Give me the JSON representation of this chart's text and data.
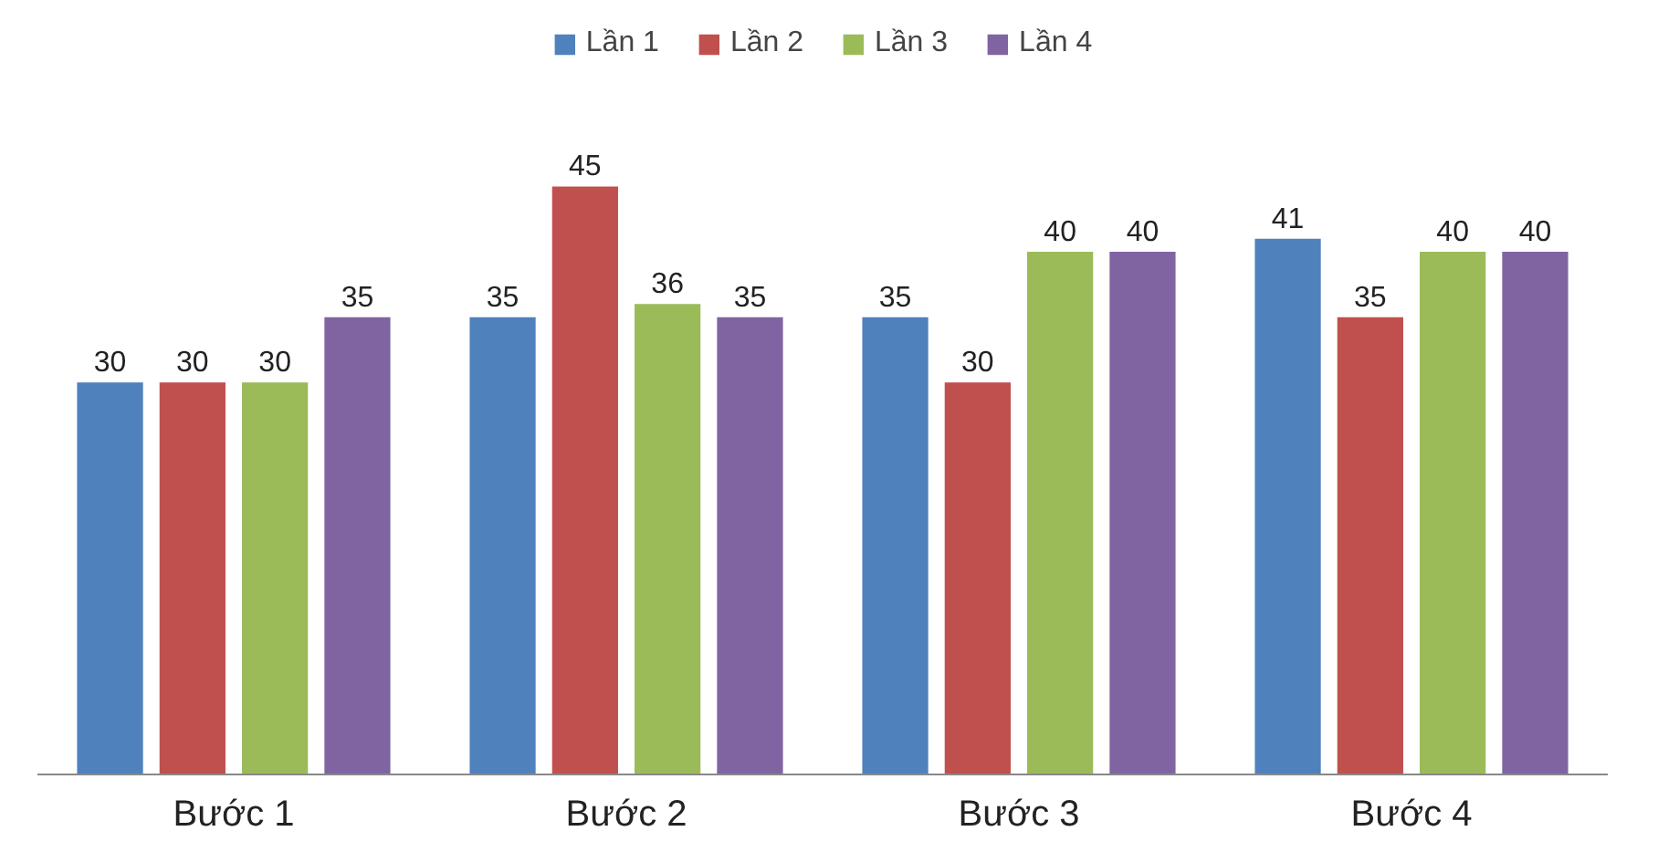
{
  "chart_data": {
    "type": "bar",
    "categories": [
      "Bước 1",
      "Bước 2",
      "Bước 3",
      "Bước 4"
    ],
    "series": [
      {
        "name": "Lần 1",
        "color": "#4f81bd",
        "values": [
          30,
          35,
          35,
          41
        ]
      },
      {
        "name": "Lần 2",
        "color": "#c0504d",
        "values": [
          30,
          45,
          30,
          35
        ]
      },
      {
        "name": "Lần 3",
        "color": "#9bbb59",
        "values": [
          30,
          36,
          40,
          40
        ]
      },
      {
        "name": "Lần 4",
        "color": "#8064a2",
        "values": [
          35,
          35,
          40,
          40
        ]
      }
    ],
    "data_labels": true,
    "grid": false,
    "legend": "top"
  }
}
